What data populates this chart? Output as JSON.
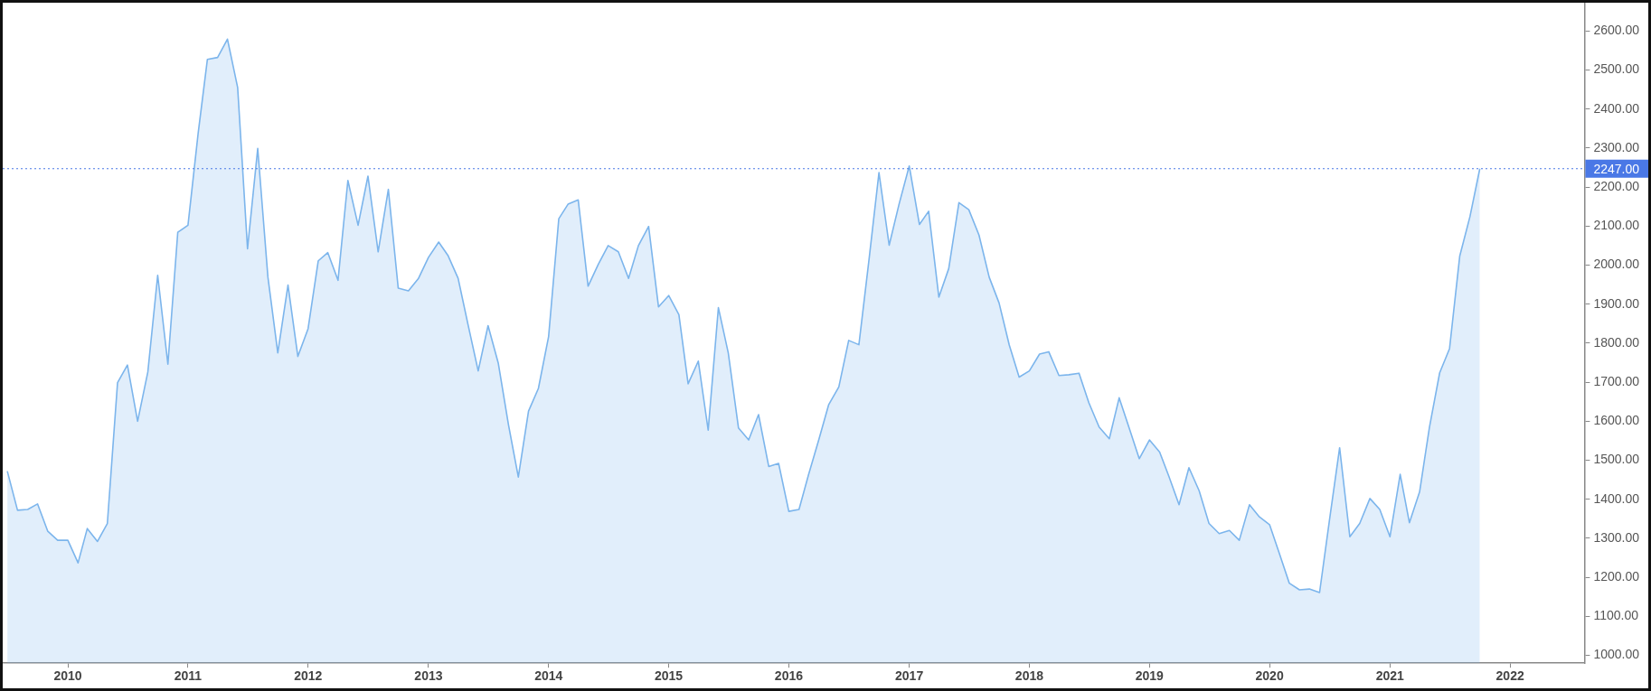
{
  "chart_data": {
    "type": "area",
    "x": [
      "2009-07",
      "2009-08",
      "2009-09",
      "2009-10",
      "2009-11",
      "2009-12",
      "2010-01",
      "2010-02",
      "2010-03",
      "2010-04",
      "2010-05",
      "2010-06",
      "2010-07",
      "2010-08",
      "2010-09",
      "2010-10",
      "2010-11",
      "2010-12",
      "2011-01",
      "2011-02",
      "2011-03",
      "2011-04",
      "2011-05",
      "2011-06",
      "2011-07",
      "2011-08",
      "2011-09",
      "2011-10",
      "2011-11",
      "2011-12",
      "2012-01",
      "2012-02",
      "2012-03",
      "2012-04",
      "2012-05",
      "2012-06",
      "2012-07",
      "2012-08",
      "2012-09",
      "2012-10",
      "2012-11",
      "2012-12",
      "2013-01",
      "2013-02",
      "2013-03",
      "2013-04",
      "2013-05",
      "2013-06",
      "2013-07",
      "2013-08",
      "2013-09",
      "2013-10",
      "2013-11",
      "2013-12",
      "2014-01",
      "2014-02",
      "2014-03",
      "2014-04",
      "2014-05",
      "2014-06",
      "2014-07",
      "2014-08",
      "2014-09",
      "2014-10",
      "2014-11",
      "2014-12",
      "2015-01",
      "2015-02",
      "2015-03",
      "2015-04",
      "2015-05",
      "2015-06",
      "2015-07",
      "2015-08",
      "2015-09",
      "2015-10",
      "2015-11",
      "2015-12",
      "2016-01",
      "2016-02",
      "2016-03",
      "2016-04",
      "2016-05",
      "2016-06",
      "2016-07",
      "2016-08",
      "2016-09",
      "2016-10",
      "2016-11",
      "2016-12",
      "2017-01",
      "2017-02",
      "2017-03",
      "2017-04",
      "2017-05",
      "2017-06",
      "2017-07",
      "2017-08",
      "2017-09",
      "2017-10",
      "2017-11",
      "2017-12",
      "2018-01",
      "2018-02",
      "2018-03",
      "2018-04",
      "2018-05",
      "2018-06",
      "2018-07",
      "2018-08",
      "2018-09",
      "2018-10",
      "2018-11",
      "2018-12",
      "2019-01",
      "2019-02",
      "2019-03",
      "2019-04",
      "2019-05",
      "2019-06",
      "2019-07",
      "2019-08",
      "2019-09",
      "2019-10",
      "2019-11",
      "2019-12",
      "2020-01",
      "2020-02",
      "2020-03",
      "2020-04",
      "2020-05",
      "2020-06",
      "2020-07",
      "2020-08",
      "2020-09",
      "2020-10",
      "2020-11",
      "2020-12",
      "2021-01",
      "2021-02",
      "2021-03",
      "2021-04",
      "2021-05",
      "2021-06",
      "2021-07",
      "2021-08",
      "2021-09",
      "2021-10"
    ],
    "series": [
      {
        "color": "#7cb5ec",
        "values": [
          1472,
          1372,
          1374,
          1388,
          1318,
          1295,
          1295,
          1237,
          1325,
          1292,
          1338,
          1699,
          1744,
          1600,
          1726,
          1974,
          1746,
          2084,
          2102,
          2338,
          2527,
          2532,
          2579,
          2455,
          2042,
          2299,
          1969,
          1775,
          1949,
          1766,
          1837,
          2011,
          2032,
          1961,
          2217,
          2102,
          2228,
          2034,
          2194,
          1941,
          1934,
          1965,
          2020,
          2059,
          2025,
          1966,
          1848,
          1729,
          1845,
          1749,
          1591,
          1457,
          1626,
          1684,
          1817,
          2119,
          2156,
          2167,
          1946,
          2002,
          2050,
          2034,
          1966,
          2050,
          2099,
          1893,
          1922,
          1873,
          1696,
          1754,
          1577,
          1891,
          1775,
          1583,
          1552,
          1617,
          1484,
          1492,
          1369,
          1374,
          1463,
          1552,
          1642,
          1688,
          1807,
          1796,
          2016,
          2237,
          2051,
          2156,
          2254,
          2104,
          2138,
          1918,
          1991,
          2160,
          2142,
          2077,
          1969,
          1903,
          1795,
          1713,
          1729,
          1772,
          1778,
          1717,
          1719,
          1723,
          1647,
          1585,
          1555,
          1660,
          1581,
          1504,
          1552,
          1521,
          1459,
          1386,
          1481,
          1422,
          1338,
          1312,
          1320,
          1295,
          1386,
          1355,
          1335,
          1258,
          1185,
          1168,
          1170,
          1161,
          1346,
          1532,
          1304,
          1338,
          1402,
          1374,
          1304,
          1464,
          1340,
          1419,
          1585,
          1724,
          1786,
          2023,
          2124,
          2247
        ]
      }
    ],
    "xlim": [
      "2009-06-17",
      "2022-08-15"
    ],
    "xticks": [
      "2010",
      "2011",
      "2012",
      "2013",
      "2014",
      "2015",
      "2016",
      "2017",
      "2018",
      "2019",
      "2020",
      "2021",
      "2022"
    ],
    "ylim": [
      980,
      2670
    ],
    "yticks": [
      {
        "value": 1000,
        "label": "1000.00"
      },
      {
        "value": 1100,
        "label": "1100.00"
      },
      {
        "value": 1200,
        "label": "1200.00"
      },
      {
        "value": 1300,
        "label": "1300.00"
      },
      {
        "value": 1400,
        "label": "1400.00"
      },
      {
        "value": 1500,
        "label": "1500.00"
      },
      {
        "value": 1600,
        "label": "1600.00"
      },
      {
        "value": 1700,
        "label": "1700.00"
      },
      {
        "value": 1800,
        "label": "1800.00"
      },
      {
        "value": 1900,
        "label": "1900.00"
      },
      {
        "value": 2000,
        "label": "2000.00"
      },
      {
        "value": 2100,
        "label": "2100.00"
      },
      {
        "value": 2200,
        "label": "2200.00"
      },
      {
        "value": 2300,
        "label": "2300.00"
      },
      {
        "value": 2400,
        "label": "2400.00"
      },
      {
        "value": 2500,
        "label": "2500.00"
      },
      {
        "value": 2600,
        "label": "2600.00"
      }
    ],
    "ref_lines": [
      {
        "axis": "y",
        "value": 2247,
        "label": "2247.00",
        "color": "#4a78e6",
        "line_style": "dotted"
      }
    ]
  }
}
